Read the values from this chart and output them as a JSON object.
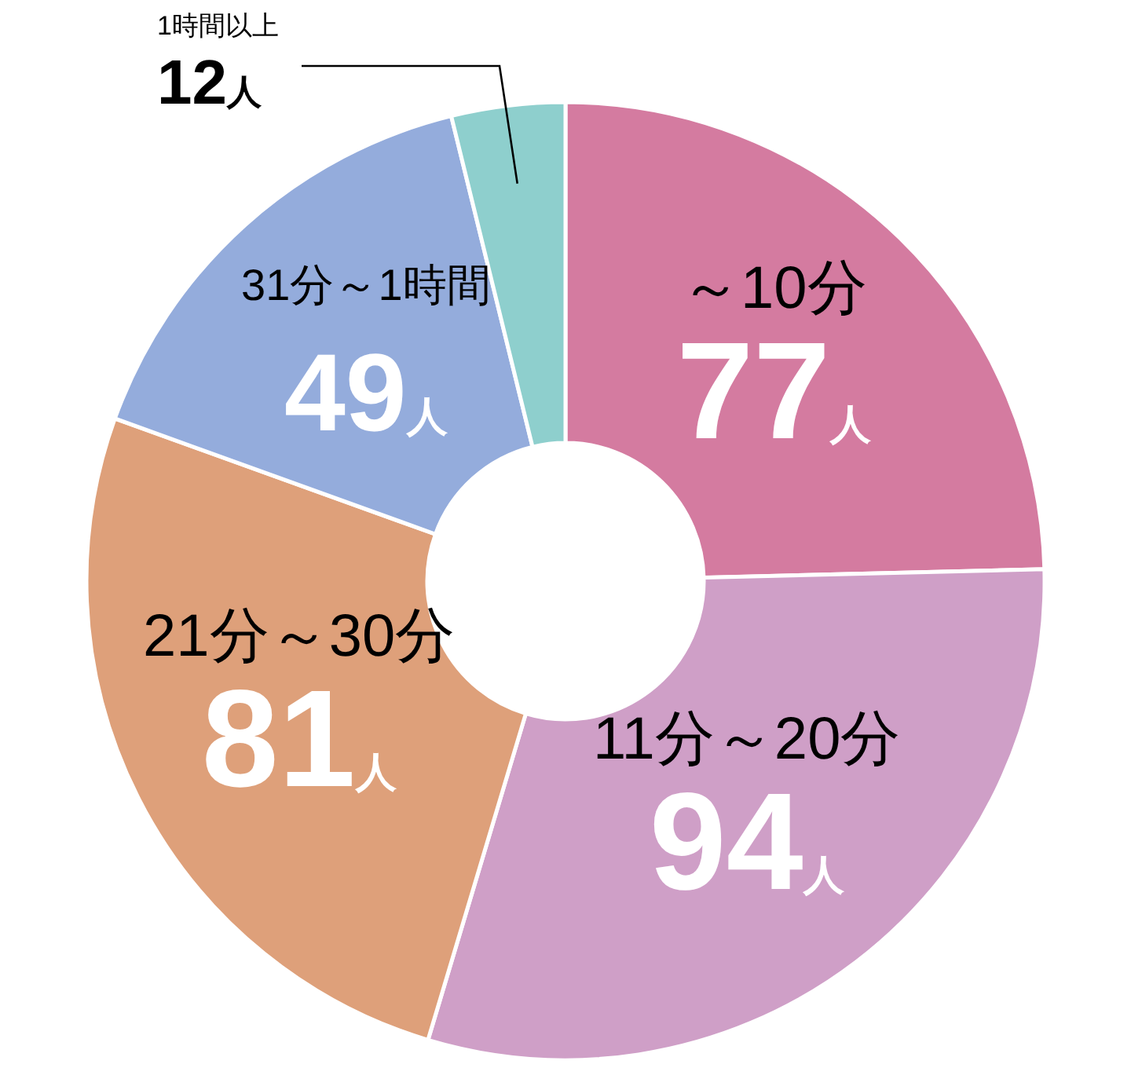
{
  "chart_data": {
    "type": "donut",
    "categories": [
      "～10分",
      "11分～20分",
      "21分～30分",
      "31分～1時間",
      "1時間以上"
    ],
    "values": [
      77,
      94,
      81,
      49,
      12
    ],
    "colors": [
      "#d47ba0",
      "#cf9fc7",
      "#dea07a",
      "#94acdc",
      "#8ecfcd"
    ],
    "value_labels": [
      "77人",
      "94人",
      "81人",
      "49人",
      "12人"
    ]
  }
}
